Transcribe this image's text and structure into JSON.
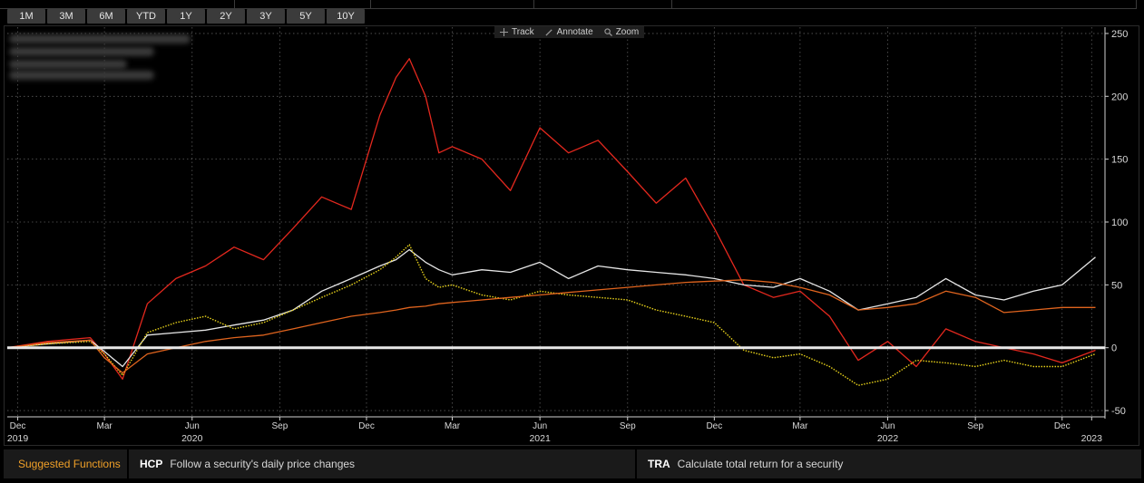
{
  "range_buttons": [
    "1M",
    "3M",
    "6M",
    "YTD",
    "1Y",
    "2Y",
    "3Y",
    "5Y",
    "10Y"
  ],
  "tools": [
    {
      "label": "Track",
      "icon": "crosshair-icon"
    },
    {
      "label": "Annotate",
      "icon": "pencil-icon"
    },
    {
      "label": "Zoom",
      "icon": "magnifier-icon"
    }
  ],
  "suggested": {
    "title": "Suggested Functions",
    "items": [
      {
        "code": "HCP",
        "desc": "Follow a security's daily price changes"
      },
      {
        "code": "TRA",
        "desc": "Calculate total return for a security"
      }
    ]
  },
  "colors": {
    "background": "#000000",
    "grid": "#5a5a5a",
    "zero_line": "#e8e8e8",
    "accent": "#f0a028"
  },
  "chart_data": {
    "type": "line",
    "y_axis_side": "right",
    "ylim": [
      -55,
      255
    ],
    "yticks": [
      250,
      200,
      150,
      100,
      50,
      0,
      -50
    ],
    "xlim": [
      "2019-11-20",
      "2023-01-15"
    ],
    "x_ticks": [
      {
        "date": "2019-12-01",
        "month": "Dec",
        "year": "2019"
      },
      {
        "date": "2020-03-01",
        "month": "Mar"
      },
      {
        "date": "2020-06-01",
        "month": "Jun",
        "year": "2020"
      },
      {
        "date": "2020-09-01",
        "month": "Sep"
      },
      {
        "date": "2020-12-01",
        "month": "Dec"
      },
      {
        "date": "2021-03-01",
        "month": "Mar"
      },
      {
        "date": "2021-06-01",
        "month": "Jun",
        "year": "2021"
      },
      {
        "date": "2021-09-01",
        "month": "Sep"
      },
      {
        "date": "2021-12-01",
        "month": "Dec"
      },
      {
        "date": "2022-03-01",
        "month": "Mar"
      },
      {
        "date": "2022-06-01",
        "month": "Jun",
        "year": "2022"
      },
      {
        "date": "2022-09-01",
        "month": "Sep"
      },
      {
        "date": "2022-12-01",
        "month": "Dec"
      },
      {
        "date": "2023-01-01",
        "year": "2023"
      }
    ],
    "grid": true,
    "zero_line": true,
    "series": [
      {
        "color": "#e4281e",
        "style": "solid",
        "x": [
          "2019-11-20",
          "2020-01-01",
          "2020-02-15",
          "2020-03-01",
          "2020-03-20",
          "2020-04-15",
          "2020-05-15",
          "2020-06-15",
          "2020-07-15",
          "2020-08-15",
          "2020-09-15",
          "2020-10-15",
          "2020-11-15",
          "2020-12-15",
          "2021-01-01",
          "2021-01-15",
          "2021-02-01",
          "2021-02-15",
          "2021-03-01",
          "2021-04-01",
          "2021-05-01",
          "2021-06-01",
          "2021-07-01",
          "2021-08-01",
          "2021-09-01",
          "2021-10-01",
          "2021-11-01",
          "2021-12-01",
          "2022-01-01",
          "2022-02-01",
          "2022-03-01",
          "2022-04-01",
          "2022-05-01",
          "2022-06-01",
          "2022-07-01",
          "2022-08-01",
          "2022-09-01",
          "2022-10-01",
          "2022-11-01",
          "2022-12-01",
          "2023-01-05"
        ],
        "y": [
          0,
          5,
          8,
          -5,
          -25,
          35,
          55,
          65,
          80,
          70,
          95,
          120,
          110,
          185,
          215,
          230,
          200,
          155,
          160,
          150,
          125,
          175,
          155,
          165,
          140,
          115,
          135,
          95,
          50,
          40,
          45,
          25,
          -10,
          5,
          -15,
          15,
          5,
          0,
          -5,
          -12,
          -2
        ]
      },
      {
        "color": "#e6e6e6",
        "style": "solid",
        "x": [
          "2019-11-20",
          "2020-01-01",
          "2020-02-15",
          "2020-03-01",
          "2020-03-20",
          "2020-04-15",
          "2020-05-15",
          "2020-06-15",
          "2020-07-15",
          "2020-08-15",
          "2020-09-15",
          "2020-10-15",
          "2020-11-15",
          "2020-12-15",
          "2021-01-01",
          "2021-01-15",
          "2021-02-01",
          "2021-02-15",
          "2021-03-01",
          "2021-04-01",
          "2021-05-01",
          "2021-06-01",
          "2021-07-01",
          "2021-08-01",
          "2021-09-01",
          "2021-10-01",
          "2021-11-01",
          "2021-12-01",
          "2022-01-01",
          "2022-02-01",
          "2022-03-01",
          "2022-04-01",
          "2022-05-01",
          "2022-06-01",
          "2022-07-01",
          "2022-08-01",
          "2022-09-01",
          "2022-10-01",
          "2022-11-01",
          "2022-12-01",
          "2023-01-05"
        ],
        "y": [
          0,
          3,
          6,
          -3,
          -15,
          10,
          12,
          14,
          18,
          22,
          30,
          45,
          55,
          65,
          70,
          78,
          68,
          62,
          58,
          62,
          60,
          68,
          55,
          65,
          62,
          60,
          58,
          55,
          50,
          48,
          55,
          45,
          30,
          35,
          40,
          55,
          42,
          38,
          45,
          50,
          72
        ]
      },
      {
        "color": "#e8d21a",
        "style": "dotted",
        "x": [
          "2019-11-20",
          "2020-01-01",
          "2020-02-15",
          "2020-03-01",
          "2020-03-20",
          "2020-04-15",
          "2020-05-15",
          "2020-06-15",
          "2020-07-15",
          "2020-08-15",
          "2020-09-15",
          "2020-10-15",
          "2020-11-15",
          "2020-12-15",
          "2021-01-01",
          "2021-01-15",
          "2021-02-01",
          "2021-02-15",
          "2021-03-01",
          "2021-04-01",
          "2021-05-01",
          "2021-06-01",
          "2021-07-01",
          "2021-08-01",
          "2021-09-01",
          "2021-10-01",
          "2021-11-01",
          "2021-12-01",
          "2022-01-01",
          "2022-02-01",
          "2022-03-01",
          "2022-04-01",
          "2022-05-01",
          "2022-06-01",
          "2022-07-01",
          "2022-08-01",
          "2022-09-01",
          "2022-10-01",
          "2022-11-01",
          "2022-12-01",
          "2023-01-05"
        ],
        "y": [
          0,
          3,
          5,
          -5,
          -22,
          12,
          20,
          25,
          15,
          20,
          30,
          40,
          50,
          62,
          72,
          82,
          55,
          48,
          50,
          42,
          38,
          45,
          42,
          40,
          38,
          30,
          25,
          20,
          -2,
          -8,
          -5,
          -15,
          -30,
          -25,
          -10,
          -12,
          -15,
          -10,
          -15,
          -15,
          -5
        ]
      },
      {
        "color": "#e0641e",
        "style": "solid",
        "x": [
          "2019-11-20",
          "2020-01-01",
          "2020-02-15",
          "2020-03-01",
          "2020-03-20",
          "2020-04-15",
          "2020-05-15",
          "2020-06-15",
          "2020-07-15",
          "2020-08-15",
          "2020-09-15",
          "2020-10-15",
          "2020-11-15",
          "2020-12-15",
          "2021-01-01",
          "2021-01-15",
          "2021-02-01",
          "2021-02-15",
          "2021-03-01",
          "2021-04-01",
          "2021-05-01",
          "2021-06-01",
          "2021-07-01",
          "2021-08-01",
          "2021-09-01",
          "2021-10-01",
          "2021-11-01",
          "2021-12-01",
          "2022-01-01",
          "2022-02-01",
          "2022-03-01",
          "2022-04-01",
          "2022-05-01",
          "2022-06-01",
          "2022-07-01",
          "2022-08-01",
          "2022-09-01",
          "2022-10-01",
          "2022-11-01",
          "2022-12-01",
          "2023-01-05"
        ],
        "y": [
          0,
          4,
          6,
          -8,
          -20,
          -5,
          0,
          5,
          8,
          10,
          15,
          20,
          25,
          28,
          30,
          32,
          33,
          35,
          36,
          38,
          40,
          42,
          44,
          46,
          48,
          50,
          52,
          53,
          54,
          52,
          48,
          42,
          30,
          32,
          35,
          45,
          40,
          28,
          30,
          32,
          32
        ]
      }
    ]
  }
}
